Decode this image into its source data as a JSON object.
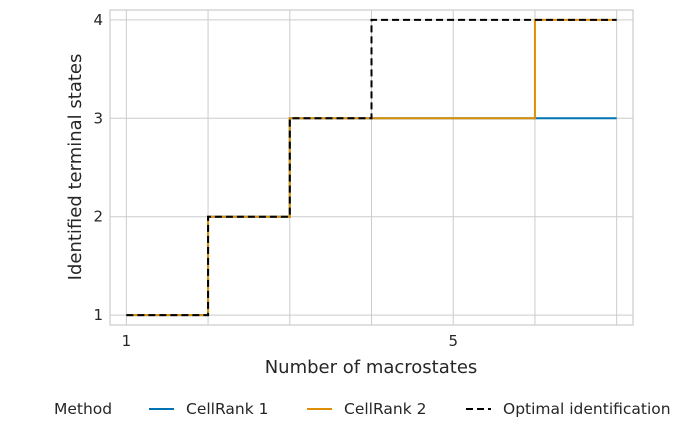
{
  "chart_data": {
    "type": "line",
    "step": true,
    "xlabel": "Number of macrostates",
    "ylabel": "Identified terminal states",
    "xlim": [
      0.8,
      7.2
    ],
    "ylim": [
      0.9,
      4.1
    ],
    "xticks": [
      1,
      5
    ],
    "yticks": [
      1,
      2,
      3,
      4
    ],
    "grid": true,
    "legend": {
      "title": "Method",
      "placement": "bottom"
    },
    "series": [
      {
        "name": "CellRank 1",
        "style": "solid",
        "color": "#0173b2",
        "x": [
          1,
          2,
          3,
          4,
          5,
          6,
          7
        ],
        "values": [
          1,
          2,
          3,
          3,
          3,
          3,
          3
        ]
      },
      {
        "name": "CellRank 2",
        "style": "solid",
        "color": "#de8f05",
        "x": [
          1,
          2,
          3,
          4,
          5,
          6,
          7
        ],
        "values": [
          1,
          2,
          3,
          3,
          3,
          4,
          4
        ]
      },
      {
        "name": "Optimal identification",
        "style": "dashed",
        "color": "#000000",
        "x": [
          1,
          2,
          3,
          4,
          5,
          6,
          7
        ],
        "values": [
          1,
          2,
          3,
          4,
          4,
          4,
          4
        ]
      }
    ]
  }
}
